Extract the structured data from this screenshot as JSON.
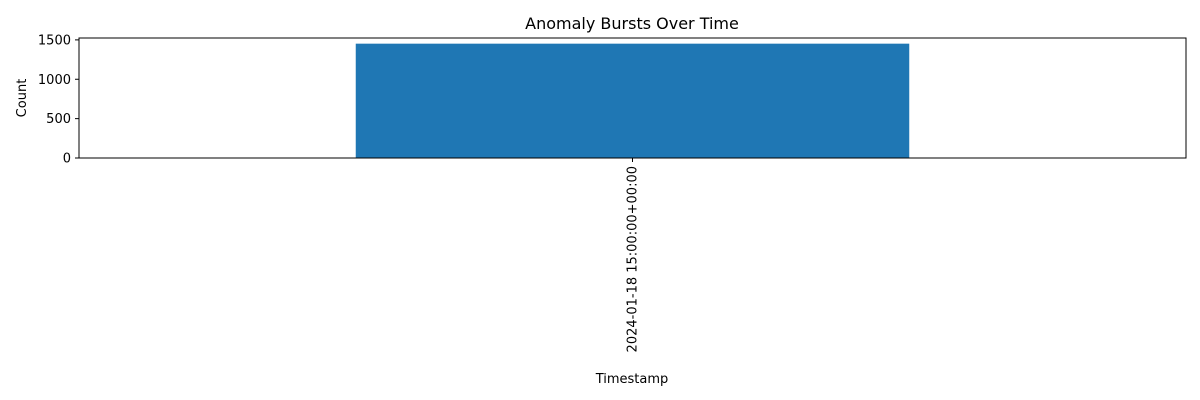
{
  "chart_data": {
    "type": "bar",
    "title": "Anomaly Bursts Over Time",
    "xlabel": "Timestamp",
    "ylabel": "Count",
    "categories": [
      "2024-01-18 15:00:00+00:00"
    ],
    "values": [
      1452
    ],
    "ylim": [
      0,
      1524
    ],
    "yticks": [
      0,
      500,
      1000,
      1500
    ],
    "grid": false,
    "legend": "none",
    "bar_color": "#1f77b4"
  }
}
